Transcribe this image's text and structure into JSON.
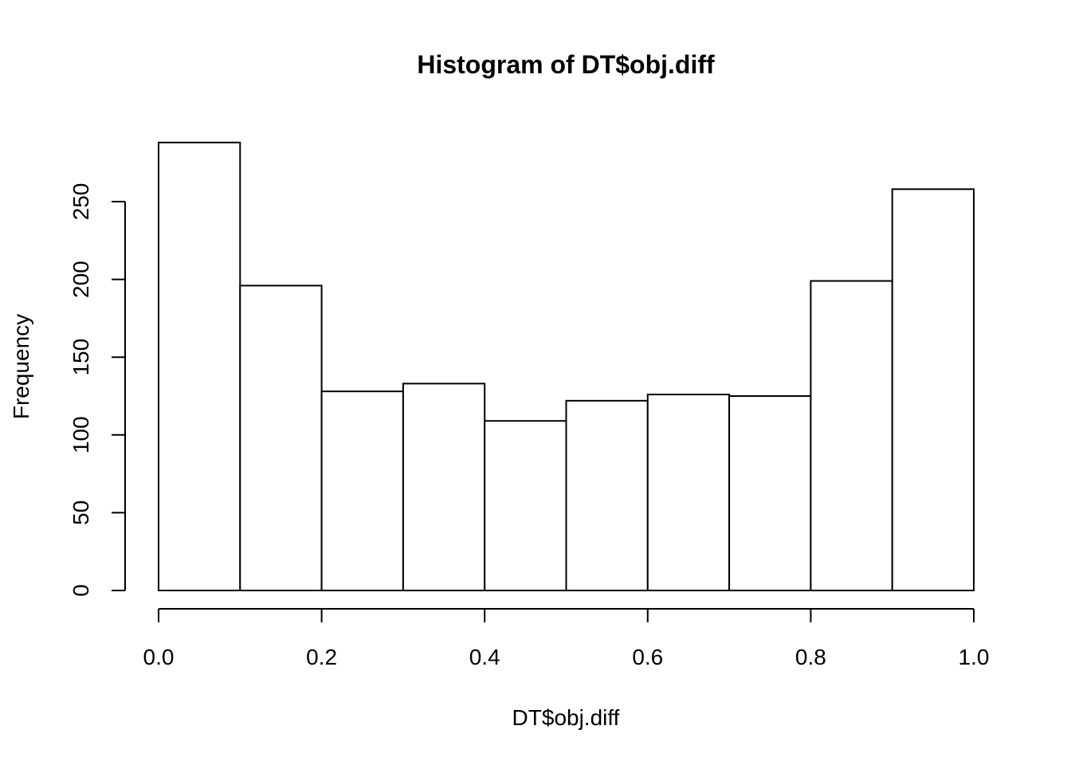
{
  "chart_data": {
    "type": "bar",
    "title": "Histogram of DT$obj.diff",
    "xlabel": "DT$obj.diff",
    "ylabel": "Frequency",
    "bins": [
      {
        "start": 0.0,
        "end": 0.1,
        "count": 288
      },
      {
        "start": 0.1,
        "end": 0.2,
        "count": 196
      },
      {
        "start": 0.2,
        "end": 0.3,
        "count": 128
      },
      {
        "start": 0.3,
        "end": 0.4,
        "count": 133
      },
      {
        "start": 0.4,
        "end": 0.5,
        "count": 109
      },
      {
        "start": 0.5,
        "end": 0.6,
        "count": 122
      },
      {
        "start": 0.6,
        "end": 0.7,
        "count": 126
      },
      {
        "start": 0.7,
        "end": 0.8,
        "count": 125
      },
      {
        "start": 0.8,
        "end": 0.9,
        "count": 199
      },
      {
        "start": 0.9,
        "end": 1.0,
        "count": 258
      }
    ],
    "xlim": [
      0.0,
      1.0
    ],
    "ylim": [
      0,
      288
    ],
    "x_ticks": [
      0.0,
      0.2,
      0.4,
      0.6,
      0.8,
      1.0
    ],
    "x_tick_labels": [
      "0.0",
      "0.2",
      "0.4",
      "0.6",
      "0.8",
      "1.0"
    ],
    "y_ticks": [
      0,
      50,
      100,
      150,
      200,
      250
    ],
    "y_tick_labels": [
      "0",
      "50",
      "100",
      "150",
      "200",
      "250"
    ],
    "grid": false,
    "bar_fill": "#ffffff",
    "bar_stroke": "#000000"
  }
}
